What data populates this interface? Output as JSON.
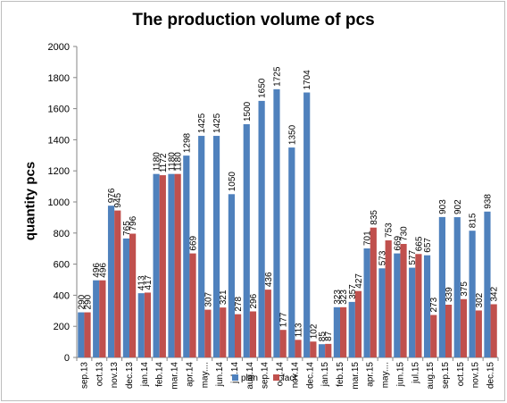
{
  "chart_data": {
    "type": "bar",
    "title": "The production volume of pcs",
    "xlabel": "",
    "ylabel": "quantity pcs",
    "ylim": [
      0,
      2000
    ],
    "yticks": [
      0,
      200,
      400,
      600,
      800,
      1000,
      1200,
      1400,
      1600,
      1800,
      2000
    ],
    "grid": false,
    "legend_position": "bottom-center",
    "categories": [
      "sep.13",
      "oct.13",
      "nov.13",
      "dec.13",
      "jan.14",
      "feb.14",
      "mar.14",
      "apr.14",
      "may....",
      "jun.14",
      "jul.14",
      "aug.14",
      "sep.14",
      "oct.14",
      "nov.14",
      "dec.14",
      "jan.15",
      "feb.15",
      "mar.15",
      "apr.15",
      "may....",
      "jun.15",
      "jul.15",
      "aug.15",
      "sep.15",
      "oct.15",
      "nov.15",
      "dec.15"
    ],
    "series": [
      {
        "name": "plan",
        "color": "#4F81BD",
        "values": [
          290,
          496,
          976,
          765,
          413,
          1180,
          1180,
          1298,
          1425,
          1425,
          1050,
          1500,
          1650,
          1725,
          1350,
          1704,
          85,
          323,
          357,
          701,
          573,
          669,
          577,
          657,
          903,
          902,
          815,
          938
        ]
      },
      {
        "name": "fact",
        "color": "#C0504D",
        "values": [
          290,
          496,
          945,
          796,
          417,
          1172,
          1180,
          669,
          307,
          321,
          278,
          296,
          436,
          177,
          113,
          102,
          87,
          323,
          427,
          835,
          753,
          730,
          665,
          273,
          339,
          375,
          302,
          342
        ]
      }
    ]
  }
}
